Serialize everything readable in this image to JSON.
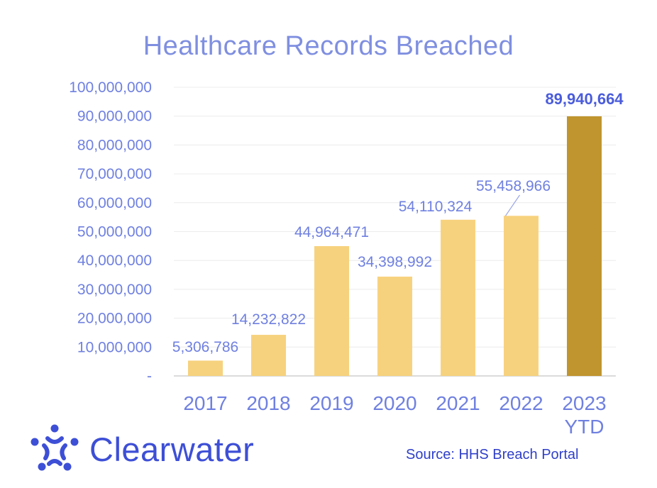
{
  "title": "Healthcare Records Breached",
  "source": "Source: HHS Breach Portal",
  "brand": {
    "name": "Clearwater"
  },
  "colors": {
    "bar": "#f7d27e",
    "highlight": "#c0952f",
    "text": "#6f80e0",
    "brand": "#3d4fd6",
    "grid": "#ececec"
  },
  "chart_data": {
    "type": "bar",
    "title": "Healthcare Records Breached",
    "categories": [
      "2017",
      "2018",
      "2019",
      "2020",
      "2021",
      "2022",
      "2023\nYTD"
    ],
    "values": [
      5306786,
      14232822,
      44964471,
      34398992,
      54110324,
      55458966,
      89940664
    ],
    "data_labels": [
      "5,306,786",
      "14,232,822",
      "44,964,471",
      "34,398,992",
      "54,110,324",
      "55,458,966",
      "89,940,664"
    ],
    "highlight_index": 6,
    "ylim": [
      0,
      100000000
    ],
    "yticks": [
      0,
      10000000,
      20000000,
      30000000,
      40000000,
      50000000,
      60000000,
      70000000,
      80000000,
      90000000,
      100000000
    ],
    "ytick_labels": [
      "-",
      "10,000,000",
      "20,000,000",
      "30,000,000",
      "40,000,000",
      "50,000,000",
      "60,000,000",
      "70,000,000",
      "80,000,000",
      "90,000,000",
      "100,000,000"
    ],
    "grid": true,
    "xlabel": "",
    "ylabel": ""
  }
}
